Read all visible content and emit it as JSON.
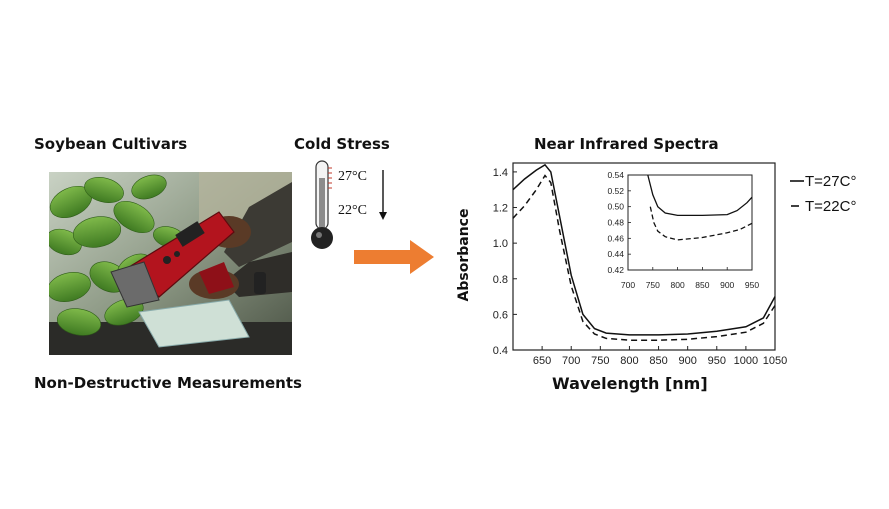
{
  "labels": {
    "soybean": "Soybean Cultivars",
    "cold_stress": "Cold Stress",
    "nir_title": "Near Infrared Spectra",
    "nondestructive": "Non-Destructive Measurements"
  },
  "thermometer": {
    "high_temp": "27°C",
    "low_temp": "22°C"
  },
  "colors": {
    "arrow": "#ed7d31",
    "device": "#b3141e",
    "thermo_bulb": "#222222"
  },
  "chart_data": {
    "type": "line",
    "xlabel": "Wavelength [nm]",
    "ylabel": "Absorbance",
    "xlim": [
      600,
      1050
    ],
    "ylim": [
      0.4,
      1.45
    ],
    "xticks": [
      650,
      700,
      750,
      800,
      850,
      900,
      950,
      1000,
      1050
    ],
    "yticks": [
      0.4,
      0.6,
      0.8,
      1.0,
      1.2,
      1.4
    ],
    "series": [
      {
        "name": "T=27C°",
        "style": "solid",
        "x": [
          600,
          620,
          640,
          655,
          665,
          680,
          700,
          720,
          740,
          760,
          800,
          850,
          900,
          950,
          1000,
          1030,
          1050
        ],
        "values": [
          1.3,
          1.36,
          1.41,
          1.44,
          1.4,
          1.15,
          0.82,
          0.6,
          0.52,
          0.495,
          0.485,
          0.485,
          0.49,
          0.505,
          0.53,
          0.58,
          0.7
        ]
      },
      {
        "name": "T=22C°",
        "style": "dashed",
        "x": [
          600,
          620,
          640,
          655,
          665,
          680,
          700,
          720,
          740,
          760,
          800,
          850,
          900,
          950,
          1000,
          1030,
          1050
        ],
        "values": [
          1.14,
          1.21,
          1.3,
          1.38,
          1.34,
          1.07,
          0.76,
          0.56,
          0.49,
          0.465,
          0.455,
          0.455,
          0.46,
          0.475,
          0.5,
          0.55,
          0.65
        ]
      }
    ],
    "inset": {
      "xlim": [
        700,
        950
      ],
      "ylim": [
        0.42,
        0.54
      ],
      "xticks": [
        700,
        750,
        800,
        850,
        900,
        950
      ],
      "yticks": [
        0.42,
        0.44,
        0.46,
        0.48,
        0.5,
        0.52,
        0.54
      ],
      "series": [
        {
          "name": "T=27C°",
          "style": "solid",
          "x": [
            740,
            750,
            760,
            775,
            800,
            850,
            900,
            920,
            940,
            950
          ],
          "values": [
            0.54,
            0.515,
            0.5,
            0.492,
            0.489,
            0.489,
            0.49,
            0.495,
            0.505,
            0.512
          ]
        },
        {
          "name": "T=22C°",
          "style": "dashed",
          "x": [
            745,
            752,
            760,
            775,
            800,
            850,
            900,
            925,
            950
          ],
          "values": [
            0.5,
            0.48,
            0.469,
            0.462,
            0.458,
            0.461,
            0.467,
            0.471,
            0.479
          ]
        }
      ]
    }
  }
}
